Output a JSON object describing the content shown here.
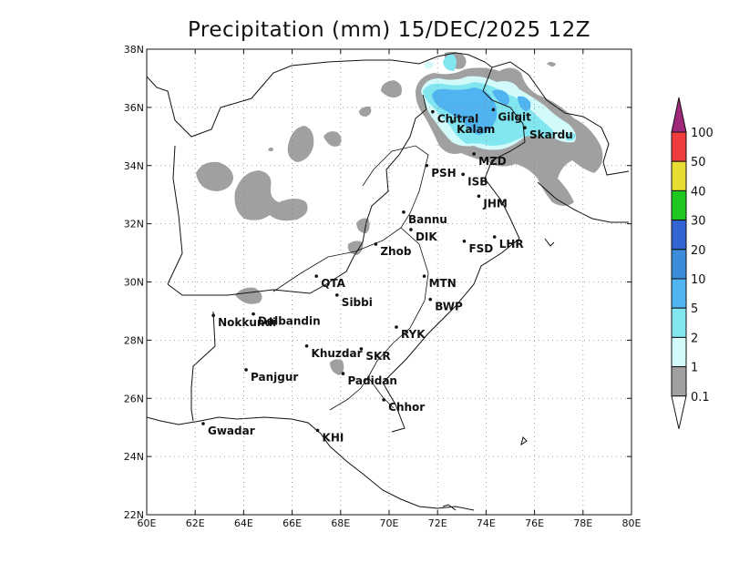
{
  "title": "Precipitation (mm) 15/DEC/2025 12Z",
  "map": {
    "lon_ticks": [
      "60E",
      "62E",
      "64E",
      "66E",
      "68E",
      "70E",
      "72E",
      "74E",
      "76E",
      "78E",
      "80E"
    ],
    "lat_ticks": [
      "22N",
      "24N",
      "26N",
      "28N",
      "30N",
      "32N",
      "34N",
      "36N",
      "38N"
    ],
    "lon_range": [
      60,
      80
    ],
    "lat_range": [
      22,
      38
    ],
    "grid": true,
    "cities": [
      {
        "name": "Chitral",
        "lon": 71.8,
        "lat": 35.85
      },
      {
        "name": "Gilgit",
        "lon": 74.3,
        "lat": 35.92
      },
      {
        "name": "Kalam",
        "lon": 72.6,
        "lat": 35.5
      },
      {
        "name": "Skardu",
        "lon": 75.6,
        "lat": 35.3
      },
      {
        "name": "MZD",
        "lon": 73.5,
        "lat": 34.4
      },
      {
        "name": "PSH",
        "lon": 71.55,
        "lat": 34.0
      },
      {
        "name": "ISB",
        "lon": 73.05,
        "lat": 33.7
      },
      {
        "name": "JHM",
        "lon": 73.7,
        "lat": 32.95
      },
      {
        "name": "Bannu",
        "lon": 70.6,
        "lat": 32.4
      },
      {
        "name": "DIK",
        "lon": 70.9,
        "lat": 31.8
      },
      {
        "name": "FSD",
        "lon": 73.1,
        "lat": 31.4
      },
      {
        "name": "LHR",
        "lon": 74.35,
        "lat": 31.55
      },
      {
        "name": "Zhob",
        "lon": 69.45,
        "lat": 31.3
      },
      {
        "name": "QTA",
        "lon": 67.0,
        "lat": 30.2
      },
      {
        "name": "MTN",
        "lon": 71.45,
        "lat": 30.2
      },
      {
        "name": "Sibbi",
        "lon": 67.85,
        "lat": 29.55
      },
      {
        "name": "BWP",
        "lon": 71.7,
        "lat": 29.4
      },
      {
        "name": "Dalbandin",
        "lon": 64.4,
        "lat": 28.9
      },
      {
        "name": "Nokkundi",
        "lon": 62.75,
        "lat": 28.85
      },
      {
        "name": "RYK",
        "lon": 70.3,
        "lat": 28.45
      },
      {
        "name": "Khuzdar",
        "lon": 66.6,
        "lat": 27.8
      },
      {
        "name": "SKR",
        "lon": 68.85,
        "lat": 27.7
      },
      {
        "name": "Panjgur",
        "lon": 64.1,
        "lat": 26.98
      },
      {
        "name": "Padidan",
        "lon": 68.1,
        "lat": 26.85
      },
      {
        "name": "Chhor",
        "lon": 69.78,
        "lat": 25.95
      },
      {
        "name": "KHI",
        "lon": 67.05,
        "lat": 24.9
      },
      {
        "name": "Gwadar",
        "lon": 62.33,
        "lat": 25.13
      }
    ]
  },
  "colorbar": {
    "levels": [
      "0.1",
      "1",
      "2",
      "5",
      "10",
      "20",
      "30",
      "40",
      "50",
      "100"
    ],
    "colors": {
      "lt_0_1": "#ffffff",
      "0.1-1": "#a0a0a0",
      "1-2": "#d2fafa",
      "2-5": "#82e6f0",
      "5-10": "#50b4f0",
      "10-20": "#3c8cdc",
      "20-30": "#3264d2",
      "30-40": "#1ec81e",
      "40-50": "#e6dc32",
      "50-100": "#f03c3c",
      "gt_100": "#a0287a"
    }
  }
}
